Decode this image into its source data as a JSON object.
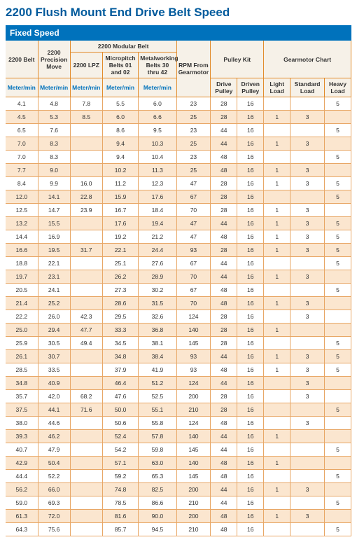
{
  "title": "2200 Flush Mount End Drive Belt Speed",
  "section_label": "Fixed Speed",
  "colors": {
    "title_color": "#005a9c",
    "section_bg": "#0072bc",
    "section_text": "#ffffff",
    "header_bg": "#f6f1e8",
    "header_border": "#e28c2b",
    "row_alt_bg": "#fbe6cf",
    "row_bg": "#ffffff",
    "cell_border": "#e8a766",
    "text_color": "#333333",
    "unit_text": "#0072bc"
  },
  "header_groups": [
    {
      "label": "2200 Belt",
      "span": 1,
      "rowspan": 2
    },
    {
      "label": "2200 Precision Move",
      "span": 1,
      "rowspan": 2
    },
    {
      "label": "2200 Modular Belt",
      "span": 3,
      "rowspan": 1
    },
    {
      "label": "RPM From Gearmotor",
      "span": 1,
      "rowspan": 3
    },
    {
      "label": "Pulley Kit",
      "span": 2,
      "rowspan": 2
    },
    {
      "label": "Gearmotor Chart",
      "span": 3,
      "rowspan": 2
    }
  ],
  "header_sub": [
    {
      "label": "2200 LPZ"
    },
    {
      "label": "Micropitch Belts 01 and 02"
    },
    {
      "label": "Metalworking Belts 30 thru 42"
    }
  ],
  "header_units": [
    "Meter/min",
    "Meter/min",
    "Meter/min",
    "Meter/min",
    "Meter/min",
    "Drive Pulley",
    "Driven Pulley",
    "Light Load",
    "Standard Load",
    "Heavy Load"
  ],
  "col_widths": [
    "8.5%",
    "8.5%",
    "8.5%",
    "9.5%",
    "10%",
    "9%",
    "7%",
    "7%",
    "7%",
    "9%",
    "7%"
  ],
  "rows": [
    [
      "4.1",
      "4.8",
      "7.8",
      "5.5",
      "6.0",
      "23",
      "28",
      "16",
      "",
      "",
      "5"
    ],
    [
      "4.5",
      "5.3",
      "8.5",
      "6.0",
      "6.6",
      "25",
      "28",
      "16",
      "1",
      "3",
      ""
    ],
    [
      "6.5",
      "7.6",
      "",
      "8.6",
      "9.5",
      "23",
      "44",
      "16",
      "",
      "",
      "5"
    ],
    [
      "7.0",
      "8.3",
      "",
      "9.4",
      "10.3",
      "25",
      "44",
      "16",
      "1",
      "3",
      ""
    ],
    [
      "7.0",
      "8.3",
      "",
      "9.4",
      "10.4",
      "23",
      "48",
      "16",
      "",
      "",
      "5"
    ],
    [
      "7.7",
      "9.0",
      "",
      "10.2",
      "11.3",
      "25",
      "48",
      "16",
      "1",
      "3",
      ""
    ],
    [
      "8.4",
      "9.9",
      "16.0",
      "11.2",
      "12.3",
      "47",
      "28",
      "16",
      "1",
      "3",
      "5"
    ],
    [
      "12.0",
      "14.1",
      "22.8",
      "15.9",
      "17.6",
      "67",
      "28",
      "16",
      "",
      "",
      "5"
    ],
    [
      "12.5",
      "14.7",
      "23.9",
      "16.7",
      "18.4",
      "70",
      "28",
      "16",
      "1",
      "3",
      ""
    ],
    [
      "13.2",
      "15.5",
      "",
      "17.6",
      "19.4",
      "47",
      "44",
      "16",
      "1",
      "3",
      "5"
    ],
    [
      "14.4",
      "16.9",
      "",
      "19.2",
      "21.2",
      "47",
      "48",
      "16",
      "1",
      "3",
      "5"
    ],
    [
      "16.6",
      "19.5",
      "31.7",
      "22.1",
      "24.4",
      "93",
      "28",
      "16",
      "1",
      "3",
      "5"
    ],
    [
      "18.8",
      "22.1",
      "",
      "25.1",
      "27.6",
      "67",
      "44",
      "16",
      "",
      "",
      "5"
    ],
    [
      "19.7",
      "23.1",
      "",
      "26.2",
      "28.9",
      "70",
      "44",
      "16",
      "1",
      "3",
      ""
    ],
    [
      "20.5",
      "24.1",
      "",
      "27.3",
      "30.2",
      "67",
      "48",
      "16",
      "",
      "",
      "5"
    ],
    [
      "21.4",
      "25.2",
      "",
      "28.6",
      "31.5",
      "70",
      "48",
      "16",
      "1",
      "3",
      ""
    ],
    [
      "22.2",
      "26.0",
      "42.3",
      "29.5",
      "32.6",
      "124",
      "28",
      "16",
      "",
      "3",
      ""
    ],
    [
      "25.0",
      "29.4",
      "47.7",
      "33.3",
      "36.8",
      "140",
      "28",
      "16",
      "1",
      "",
      ""
    ],
    [
      "25.9",
      "30.5",
      "49.4",
      "34.5",
      "38.1",
      "145",
      "28",
      "16",
      "",
      "",
      "5"
    ],
    [
      "26.1",
      "30.7",
      "",
      "34.8",
      "38.4",
      "93",
      "44",
      "16",
      "1",
      "3",
      "5"
    ],
    [
      "28.5",
      "33.5",
      "",
      "37.9",
      "41.9",
      "93",
      "48",
      "16",
      "1",
      "3",
      "5"
    ],
    [
      "34.8",
      "40.9",
      "",
      "46.4",
      "51.2",
      "124",
      "44",
      "16",
      "",
      "3",
      ""
    ],
    [
      "35.7",
      "42.0",
      "68.2",
      "47.6",
      "52.5",
      "200",
      "28",
      "16",
      "",
      "3",
      ""
    ],
    [
      "37.5",
      "44.1",
      "71.6",
      "50.0",
      "55.1",
      "210",
      "28",
      "16",
      "",
      "",
      "5"
    ],
    [
      "38.0",
      "44.6",
      "",
      "50.6",
      "55.8",
      "124",
      "48",
      "16",
      "",
      "3",
      ""
    ],
    [
      "39.3",
      "46.2",
      "",
      "52.4",
      "57.8",
      "140",
      "44",
      "16",
      "1",
      "",
      ""
    ],
    [
      "40.7",
      "47.9",
      "",
      "54.2",
      "59.8",
      "145",
      "44",
      "16",
      "",
      "",
      "5"
    ],
    [
      "42.9",
      "50.4",
      "",
      "57.1",
      "63.0",
      "140",
      "48",
      "16",
      "1",
      "",
      ""
    ],
    [
      "44.4",
      "52.2",
      "",
      "59.2",
      "65.3",
      "145",
      "48",
      "16",
      "",
      "",
      "5"
    ],
    [
      "56.2",
      "66.0",
      "",
      "74.8",
      "82.5",
      "200",
      "44",
      "16",
      "1",
      "3",
      ""
    ],
    [
      "59.0",
      "69.3",
      "",
      "78.5",
      "86.6",
      "210",
      "44",
      "16",
      "",
      "",
      "5"
    ],
    [
      "61.3",
      "72.0",
      "",
      "81.6",
      "90.0",
      "200",
      "48",
      "16",
      "1",
      "3",
      ""
    ],
    [
      "64.3",
      "75.6",
      "",
      "85.7",
      "94.5",
      "210",
      "48",
      "16",
      "",
      "",
      "5"
    ]
  ]
}
